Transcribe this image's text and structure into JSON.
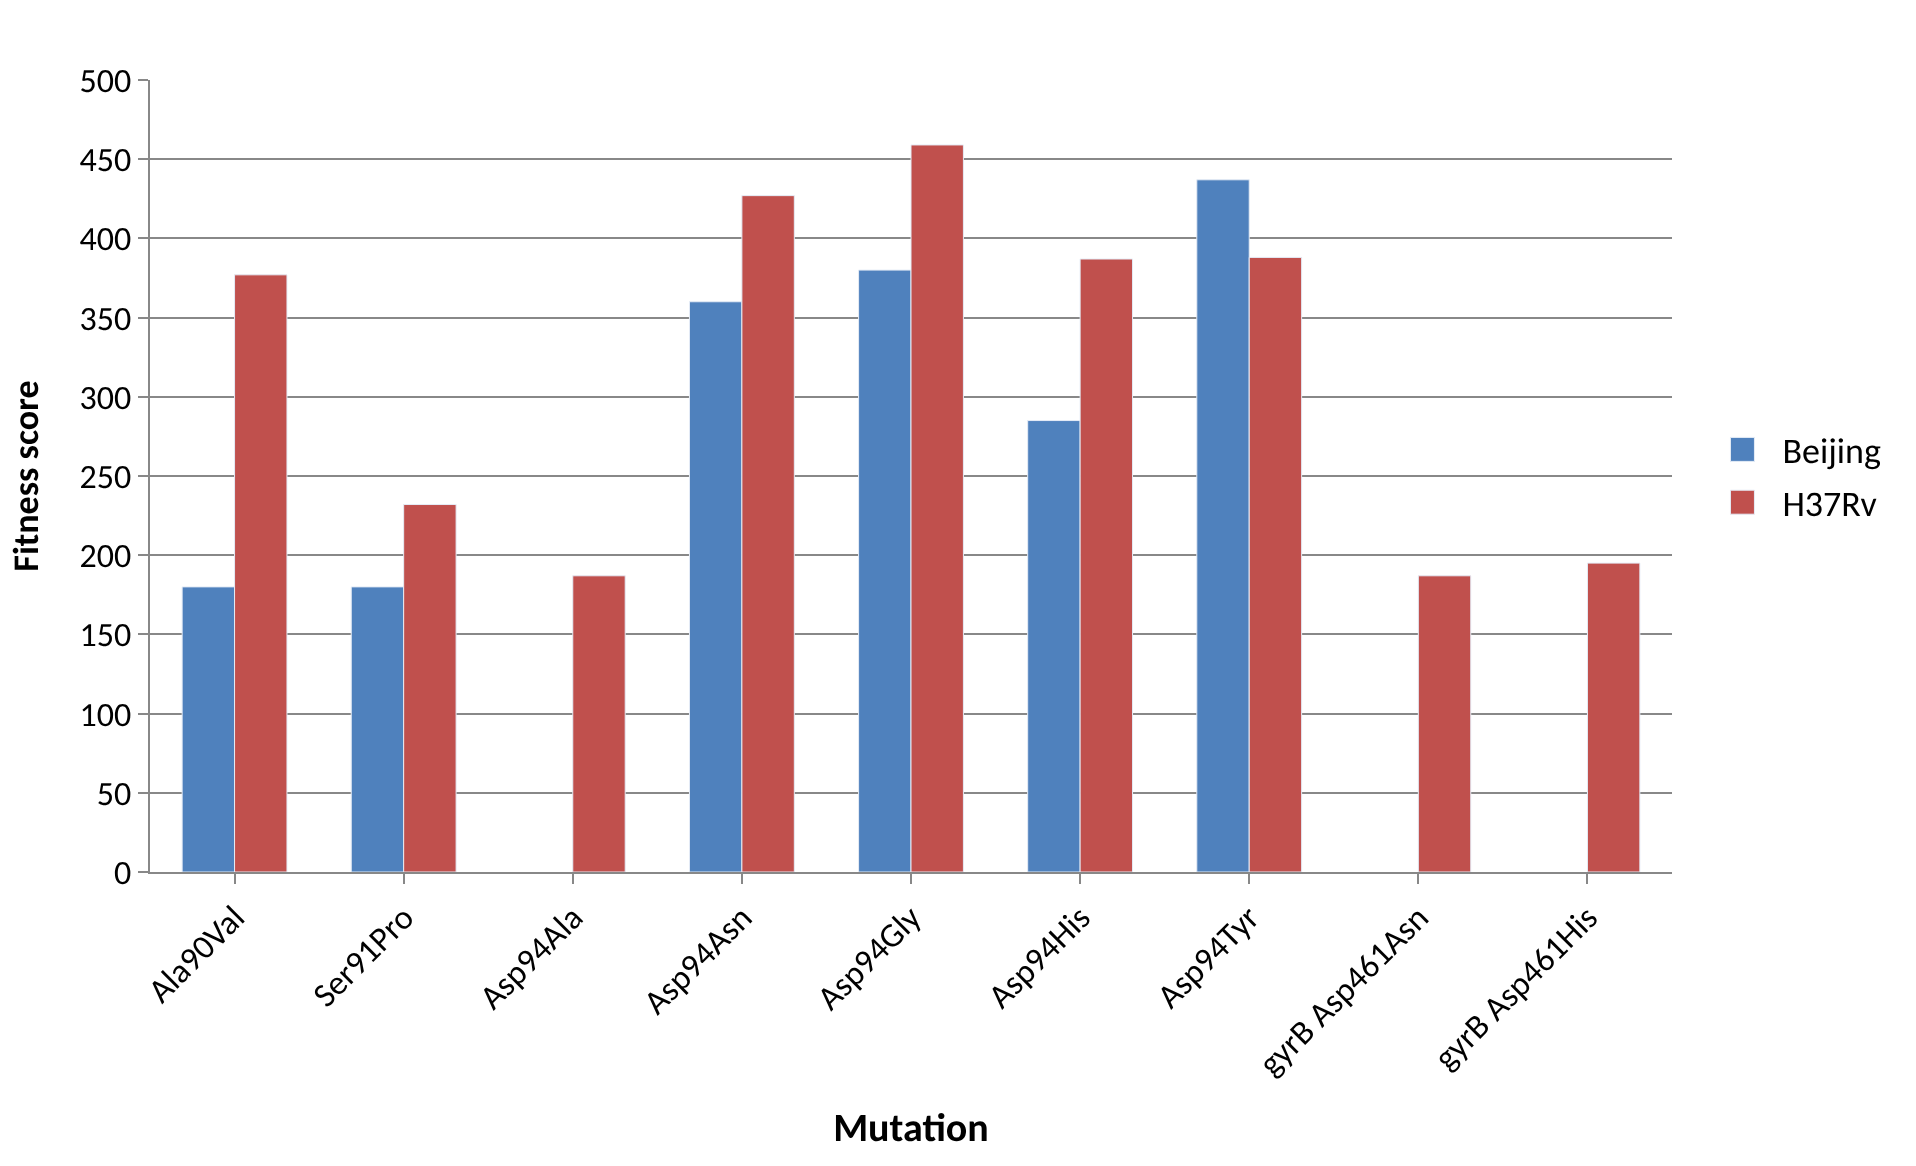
{
  "chart_data": {
    "type": "bar",
    "xlabel": "Mutation",
    "ylabel": "Fitness score",
    "categories": [
      "Ala90Val",
      "Ser91Pro",
      "Asp94Ala",
      "Asp94Asn",
      "Asp94Gly",
      "Asp94His",
      "Asp94Tyr",
      "gyrB Asp461Asn",
      "gyrB Asp461His"
    ],
    "series": [
      {
        "name": "Beijing",
        "color": "#4f81bd",
        "values": [
          180,
          180,
          null,
          360,
          380,
          285,
          437,
          null,
          null
        ]
      },
      {
        "name": "H37Rv",
        "color": "#c0504d",
        "values": [
          377,
          232,
          187,
          427,
          459,
          387,
          388,
          187,
          195
        ]
      }
    ],
    "ylim": [
      0,
      500
    ],
    "yticks": [
      0,
      50,
      100,
      150,
      200,
      250,
      300,
      350,
      400,
      450,
      500
    ],
    "grid": "y",
    "legend": "right"
  }
}
